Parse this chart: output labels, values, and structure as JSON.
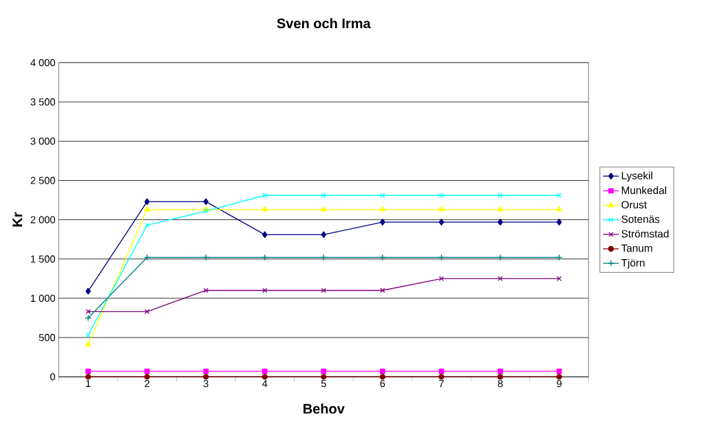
{
  "chart_data": {
    "type": "line",
    "title": "Sven och Irma",
    "xlabel": "Behov",
    "ylabel": "Kr",
    "categories": [
      "1",
      "2",
      "3",
      "4",
      "5",
      "6",
      "7",
      "8",
      "9"
    ],
    "series": [
      {
        "name": "Lysekil",
        "color": "#000080",
        "marker": "diamond",
        "values": [
          1090,
          2230,
          2230,
          1810,
          1810,
          1970,
          1970,
          1970,
          1970
        ]
      },
      {
        "name": "Munkedal",
        "color": "#ff00ff",
        "marker": "square",
        "values": [
          70,
          70,
          70,
          70,
          70,
          70,
          70,
          70,
          70
        ]
      },
      {
        "name": "Orust",
        "color": "#ffff00",
        "marker": "triangle",
        "values": [
          410,
          2130,
          2130,
          2130,
          2130,
          2130,
          2130,
          2130,
          2130
        ]
      },
      {
        "name": "Sotenäs",
        "color": "#00ffff",
        "marker": "cross",
        "values": [
          530,
          1930,
          2110,
          2310,
          2310,
          2310,
          2310,
          2310,
          2310
        ]
      },
      {
        "name": "Strömstad",
        "color": "#800080",
        "marker": "cross",
        "values": [
          830,
          830,
          1100,
          1100,
          1100,
          1100,
          1250,
          1250,
          1250
        ]
      },
      {
        "name": "Tanum",
        "color": "#800000",
        "marker": "circle",
        "values": [
          0,
          0,
          0,
          0,
          0,
          0,
          0,
          0,
          0
        ]
      },
      {
        "name": "Tjörn",
        "color": "#008080",
        "marker": "plus",
        "values": [
          750,
          1520,
          1520,
          1520,
          1520,
          1520,
          1520,
          1520,
          1520
        ]
      }
    ],
    "ylim": [
      0,
      4000
    ],
    "yticks": [
      0,
      500,
      {
        "value": 1000,
        "label": "1 000"
      },
      {
        "value": 1500,
        "label": "1 500"
      },
      {
        "value": 2000,
        "label": "2 000"
      },
      {
        "value": 2500,
        "label": "2 500"
      },
      {
        "value": 3000,
        "label": "3 000"
      },
      {
        "value": 3500,
        "label": "3 500"
      },
      {
        "value": 4000,
        "label": "4 000"
      }
    ],
    "grid": "y",
    "legend": "right"
  }
}
